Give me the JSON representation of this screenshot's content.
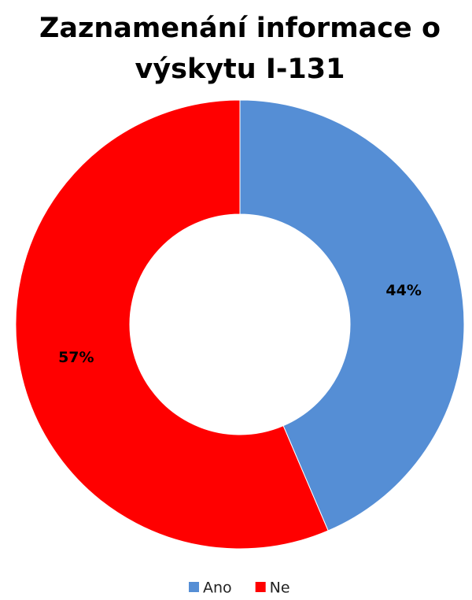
{
  "chart_data": {
    "type": "donut",
    "title": "Zaznamenání informace o výskytu I-131",
    "categories": [
      "Ano",
      "Ne"
    ],
    "values": [
      44,
      57
    ],
    "value_labels": [
      "44%",
      "57%"
    ],
    "colors": [
      "#558ed5",
      "#ff0000"
    ],
    "legend": "bottom"
  }
}
